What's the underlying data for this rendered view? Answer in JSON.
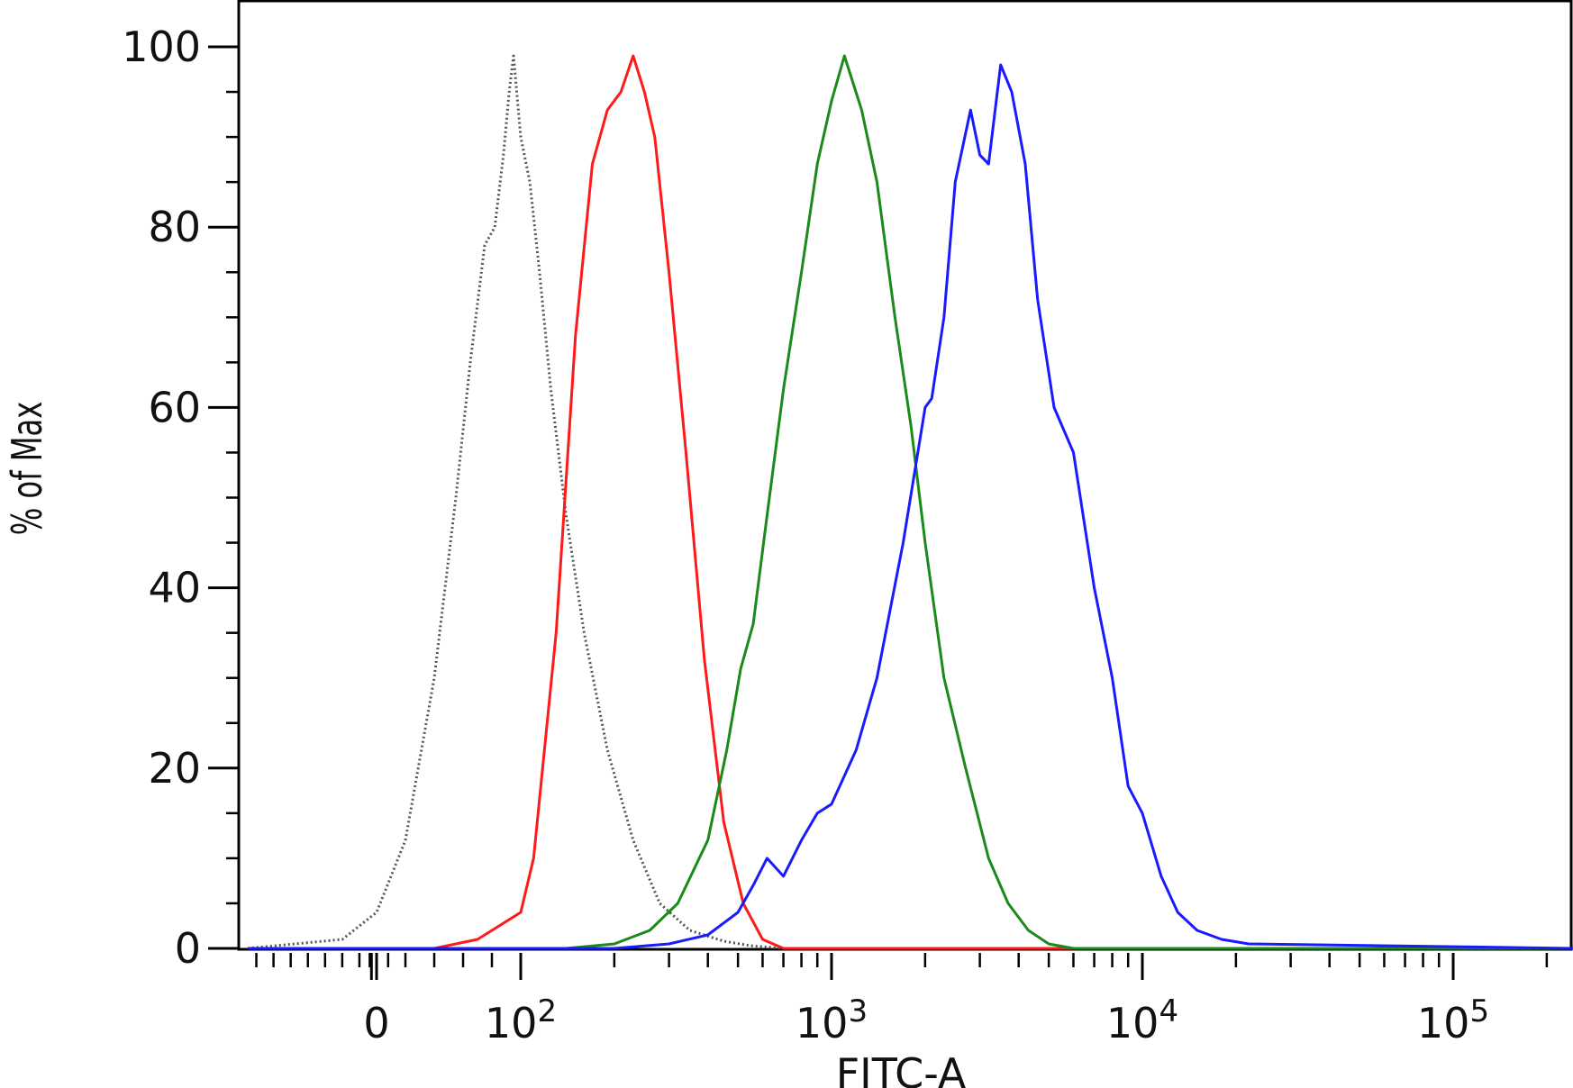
{
  "chart_data": {
    "type": "line",
    "xlabel": "FITC-A",
    "ylabel": "% of Max",
    "xscale": "biexponential (log above 10^2)",
    "ylim": [
      0,
      100
    ],
    "xlim": [
      -150,
      250000
    ],
    "grid": false,
    "legend": "none",
    "y_ticks": [
      {
        "value": 0,
        "label": "0"
      },
      {
        "value": 20,
        "label": "20"
      },
      {
        "value": 40,
        "label": "40"
      },
      {
        "value": 60,
        "label": "60"
      },
      {
        "value": 80,
        "label": "80"
      },
      {
        "value": 100,
        "label": "100"
      }
    ],
    "x_ticks": [
      {
        "value": 0,
        "label": "0"
      },
      {
        "value": 100,
        "base": "10",
        "exp": "2"
      },
      {
        "value": 1000,
        "base": "10",
        "exp": "3"
      },
      {
        "value": 10000,
        "base": "10",
        "exp": "4"
      },
      {
        "value": 100000,
        "base": "10",
        "exp": "5"
      }
    ],
    "series": [
      {
        "color": "#555555",
        "style": "dotted",
        "x": [
          -150,
          -40,
          0,
          20,
          40,
          55,
          65,
          75,
          82,
          88,
          92,
          95,
          100,
          107,
          115,
          125,
          140,
          160,
          190,
          230,
          280,
          350,
          450,
          550,
          700,
          250000
        ],
        "y": [
          0,
          1,
          4,
          12,
          30,
          50,
          65,
          78,
          80,
          88,
          95,
          99,
          90,
          85,
          75,
          62,
          48,
          35,
          22,
          12,
          5,
          2,
          0.8,
          0.3,
          0,
          0
        ]
      },
      {
        "color": "#ff1a1a",
        "style": "solid",
        "x": [
          -150,
          40,
          70,
          90,
          100,
          110,
          130,
          150,
          170,
          190,
          210,
          230,
          250,
          270,
          300,
          340,
          390,
          450,
          520,
          600,
          700,
          250000
        ],
        "y": [
          0,
          0,
          1,
          3,
          4,
          10,
          35,
          68,
          87,
          93,
          95,
          99,
          95,
          90,
          75,
          55,
          32,
          14,
          5,
          1,
          0,
          0
        ]
      },
      {
        "color": "#1a8a1a",
        "style": "solid",
        "x": [
          -150,
          140,
          200,
          260,
          320,
          400,
          460,
          510,
          560,
          620,
          700,
          800,
          900,
          1000,
          1100,
          1250,
          1400,
          1600,
          1800,
          2000,
          2300,
          2700,
          3200,
          3700,
          4300,
          5000,
          6000,
          250000
        ],
        "y": [
          0,
          0,
          0.5,
          2,
          5,
          12,
          22,
          31,
          36,
          48,
          62,
          75,
          87,
          94,
          99,
          93,
          85,
          70,
          58,
          45,
          30,
          20,
          10,
          5,
          2,
          0.5,
          0,
          0
        ]
      },
      {
        "color": "#1a1aff",
        "style": "solid",
        "x": [
          -150,
          200,
          300,
          400,
          500,
          560,
          620,
          700,
          800,
          900,
          1000,
          1200,
          1400,
          1700,
          2000,
          2100,
          2300,
          2500,
          2800,
          3000,
          3200,
          3500,
          3800,
          4200,
          4600,
          5200,
          6000,
          7000,
          8000,
          9000,
          10000,
          11500,
          13000,
          15000,
          18000,
          22000,
          250000
        ],
        "y": [
          0,
          0,
          0.5,
          1.5,
          4,
          7,
          10,
          8,
          12,
          15,
          16,
          22,
          30,
          45,
          60,
          61,
          70,
          85,
          93,
          88,
          87,
          98,
          95,
          87,
          72,
          60,
          55,
          40,
          30,
          18,
          15,
          8,
          4,
          2,
          1,
          0.5,
          0
        ]
      }
    ]
  }
}
